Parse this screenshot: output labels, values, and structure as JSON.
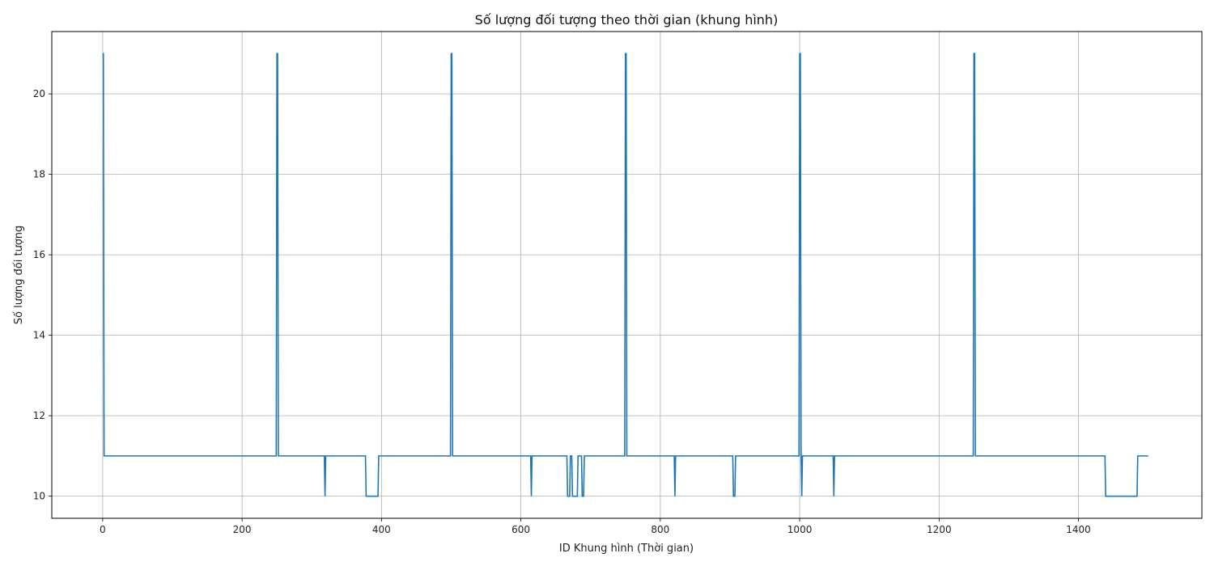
{
  "chart_data": {
    "type": "line",
    "title": "Số lượng đối tượng theo thời gian (khung hình)",
    "xlabel": "ID Khung hình (Thời gian)",
    "ylabel": "Số lượng đối tượng",
    "xlim": [
      -73,
      1577
    ],
    "ylim": [
      9.45,
      21.55
    ],
    "xticks": [
      0,
      200,
      400,
      600,
      800,
      1000,
      1200,
      1400
    ],
    "yticks": [
      10,
      12,
      14,
      16,
      18,
      20
    ],
    "grid": true,
    "series": [
      {
        "color": "#1f77b4",
        "x": [
          0,
          1,
          2,
          249,
          250,
          251,
          252,
          318,
          319,
          320,
          377,
          378,
          395,
          396,
          499,
          500,
          501,
          502,
          614,
          615,
          616,
          666,
          667,
          670,
          671,
          673,
          674,
          681,
          682,
          687,
          688,
          690,
          691,
          749,
          750,
          751,
          752,
          820,
          821,
          822,
          904,
          905,
          907,
          908,
          999,
          1000,
          1001,
          1002,
          1003,
          1004,
          1048,
          1049,
          1050,
          1051,
          1249,
          1250,
          1251,
          1252,
          1438,
          1439,
          1484,
          1485,
          1500
        ],
        "y": [
          21,
          21,
          11,
          11,
          21,
          21,
          11,
          11,
          10,
          11,
          11,
          10,
          10,
          11,
          11,
          21,
          21,
          11,
          11,
          10,
          11,
          11,
          10,
          10,
          11,
          11,
          10,
          10,
          11,
          11,
          10,
          10,
          11,
          11,
          21,
          21,
          11,
          11,
          10,
          11,
          11,
          10,
          10,
          11,
          11,
          21,
          21,
          11,
          10,
          11,
          11,
          10,
          11,
          11,
          11,
          21,
          21,
          11,
          11,
          10,
          10,
          11,
          11
        ]
      }
    ]
  }
}
